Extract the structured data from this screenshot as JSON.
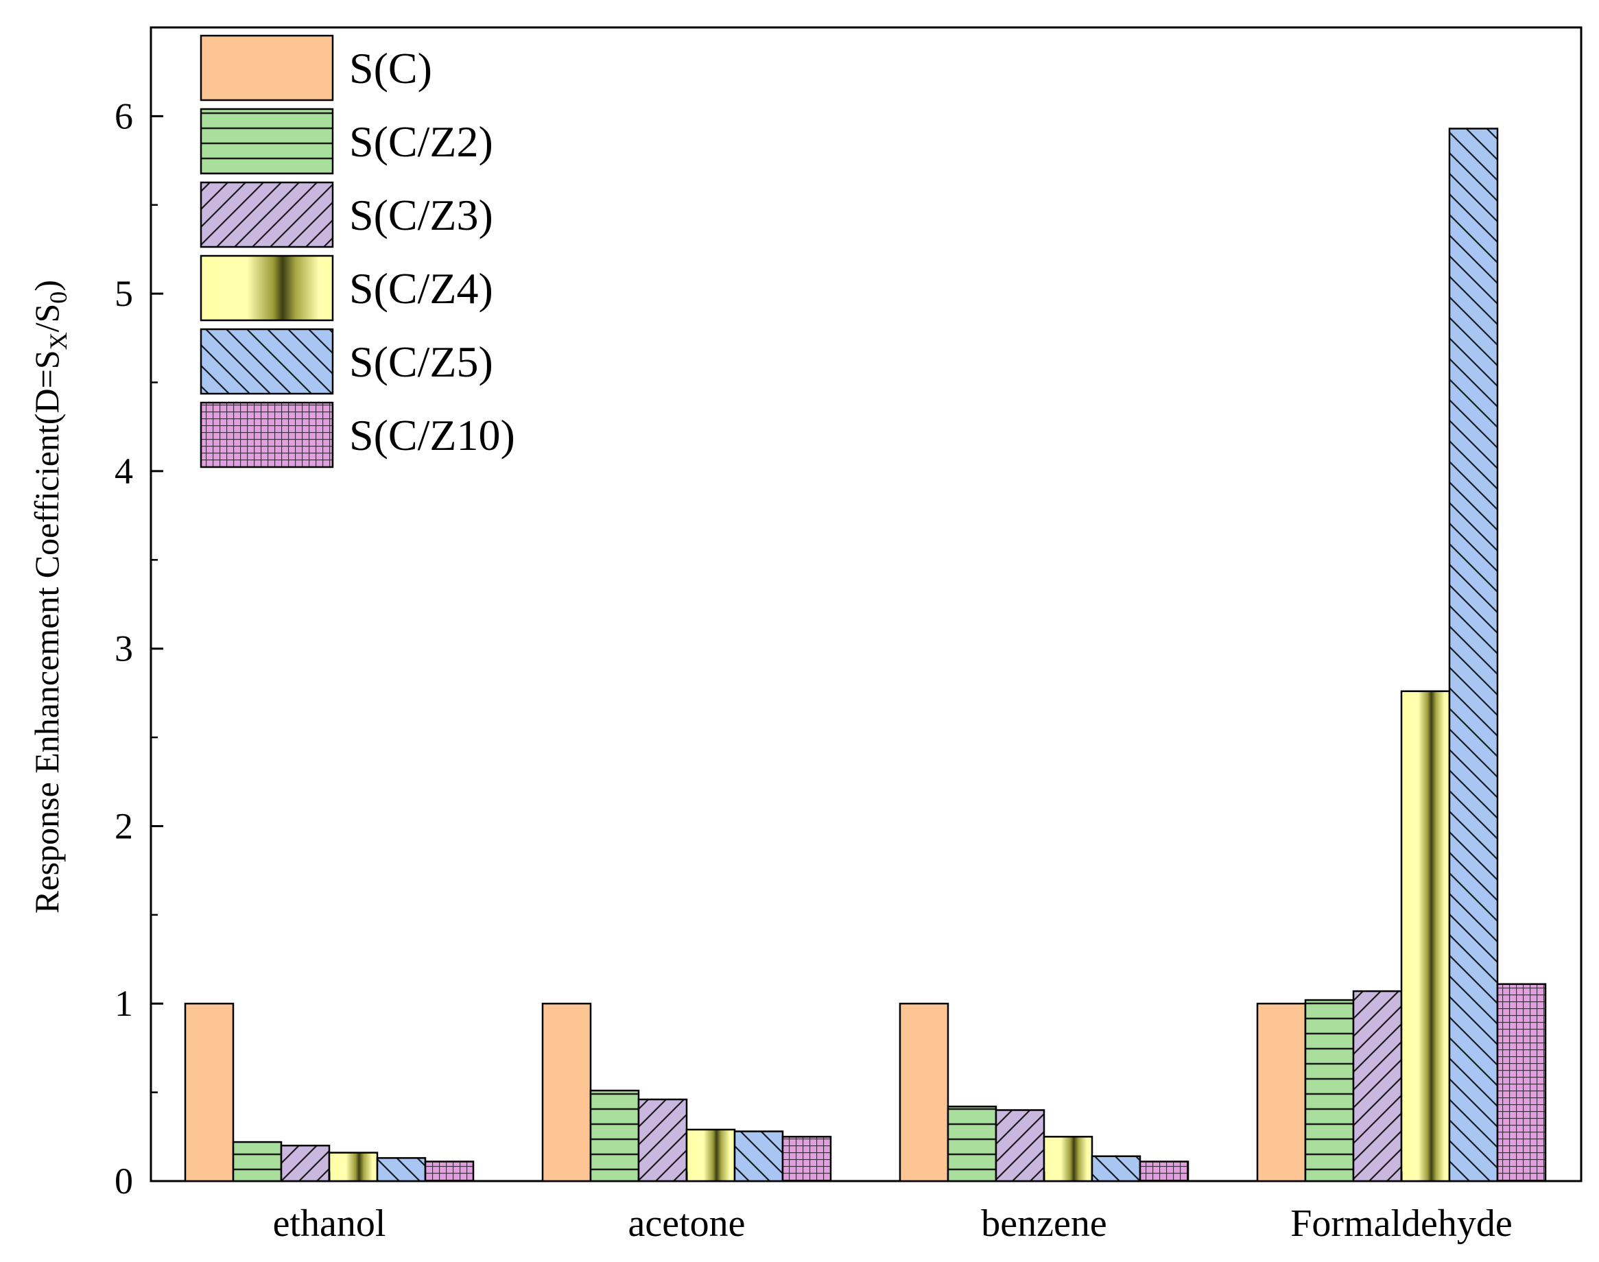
{
  "chart_data": {
    "type": "bar",
    "title": "",
    "xlabel": "",
    "ylabel": "Response Enhancement Coefficient(D=S",
    "ylabel_sub1": "X",
    "ylabel_mid": "/S",
    "ylabel_sub2": "0",
    "ylabel_end": ")",
    "ylim": [
      0,
      6.5
    ],
    "yticks": [
      0,
      1,
      2,
      3,
      4,
      5,
      6
    ],
    "categories": [
      "ethanol",
      "acetone",
      "benzene",
      "Formaldehyde"
    ],
    "legend_position": "top-left",
    "series": [
      {
        "name": "S(C)",
        "color": "#FDC593",
        "pattern": "solid",
        "values": [
          1.0,
          1.0,
          1.0,
          1.0
        ]
      },
      {
        "name": "S(C/Z2)",
        "color": "#A9DE9C",
        "pattern": "horizontal",
        "values": [
          0.22,
          0.51,
          0.42,
          1.02
        ]
      },
      {
        "name": "S(C/Z3)",
        "color": "#C9B7E0",
        "pattern": "diag-up",
        "values": [
          0.2,
          0.46,
          0.4,
          1.07
        ]
      },
      {
        "name": "S(C/Z4)",
        "color": "#FFFFA0",
        "pattern": "gradient",
        "values": [
          0.16,
          0.29,
          0.25,
          2.76
        ]
      },
      {
        "name": "S(C/Z5)",
        "color": "#A9C5F2",
        "pattern": "diag-down",
        "values": [
          0.13,
          0.28,
          0.14,
          5.93
        ]
      },
      {
        "name": "S(C/Z10)",
        "color": "#E29FE0",
        "pattern": "grid",
        "values": [
          0.11,
          0.25,
          0.11,
          1.11
        ]
      }
    ]
  }
}
